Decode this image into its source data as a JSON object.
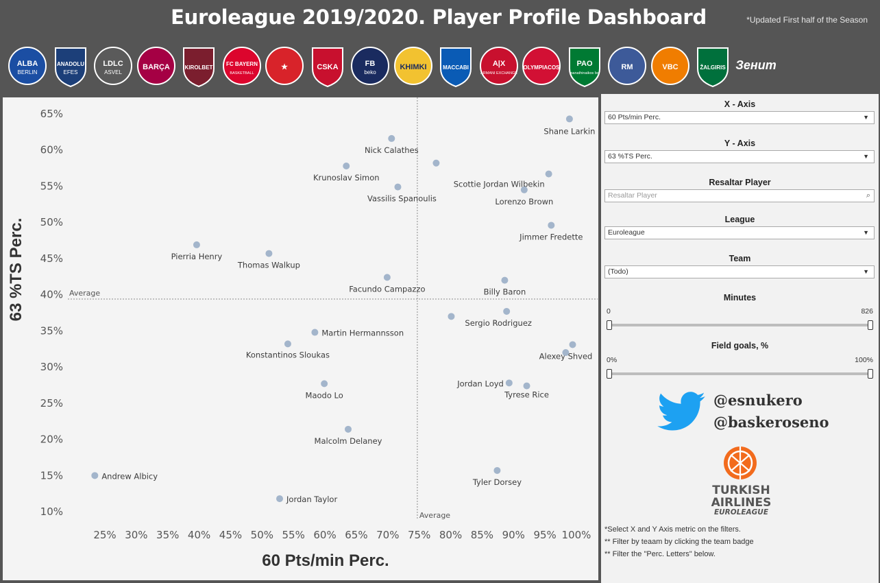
{
  "header": {
    "title": "Euroleague 2019/2020. Player Profile Dashboard",
    "subtitle": "*Updated First half of the Season"
  },
  "teams": [
    {
      "name": "alba-berlin",
      "line1": "ALBA",
      "line2": "BERLIN",
      "color": "#1b4ea3"
    },
    {
      "name": "anadolu-efes",
      "line1": "ANADOLU",
      "line2": "EFES",
      "color": "#1c3f79"
    },
    {
      "name": "ldlc-asvel",
      "line1": "LDLC",
      "line2": "ASVEL",
      "color": "#5a5a5a"
    },
    {
      "name": "barca",
      "line1": "BARÇA",
      "line2": "",
      "color": "#a50044"
    },
    {
      "name": "kirolbet-baskonia",
      "line1": "KIROLBET",
      "line2": "",
      "color": "#7b1e2e"
    },
    {
      "name": "bayern-munchen",
      "line1": "FC BAYERN",
      "line2": "BASKETBALL",
      "color": "#dc052d"
    },
    {
      "name": "crvena-zvezda",
      "line1": "★",
      "line2": "",
      "color": "#d8232a"
    },
    {
      "name": "cska-moscow",
      "line1": "CSKA",
      "line2": "",
      "color": "#c8102e"
    },
    {
      "name": "fenerbahce-beko",
      "line1": "FB",
      "line2": "beko",
      "color": "#1a2b5f"
    },
    {
      "name": "khimki",
      "line1": "KHIMKI",
      "line2": "",
      "color": "#f2c230"
    },
    {
      "name": "maccabi-tel-aviv",
      "line1": "MACCABI",
      "line2": "",
      "color": "#0a5bb5"
    },
    {
      "name": "olimpia-milano",
      "line1": "A|X",
      "line2": "ARMANI EXCHANGE",
      "color": "#c8102e"
    },
    {
      "name": "olympiacos",
      "line1": "OLYMPIACOS",
      "line2": "",
      "color": "#d21034"
    },
    {
      "name": "panathinaikos",
      "line1": "PAO",
      "line2": "panathinaikos bc",
      "color": "#007a33"
    },
    {
      "name": "real-madrid",
      "line1": "RM",
      "line2": "",
      "color": "#3d5a99"
    },
    {
      "name": "valencia-basket",
      "line1": "VBC",
      "line2": "",
      "color": "#f07d00"
    },
    {
      "name": "zalgiris",
      "line1": "ŽALGIRIS",
      "line2": "",
      "color": "#00703c"
    },
    {
      "name": "zenit",
      "line1": "Зенит",
      "line2": "",
      "color": "#ffffff"
    }
  ],
  "chart_data": {
    "type": "scatter",
    "xlabel": "60 Pts/min Perc.",
    "ylabel": "63 %TS Perc.",
    "x_ticks": [
      "25%",
      "30%",
      "35%",
      "40%",
      "45%",
      "50%",
      "55%",
      "60%",
      "65%",
      "70%",
      "75%",
      "80%",
      "85%",
      "90%",
      "95%",
      "100%"
    ],
    "y_ticks": [
      "10%",
      "15%",
      "20%",
      "25%",
      "30%",
      "35%",
      "40%",
      "45%",
      "50%",
      "55%",
      "60%",
      "65%"
    ],
    "xlim": [
      20,
      102
    ],
    "ylim": [
      8,
      66
    ],
    "x_average": 74.7,
    "y_average": 39.3,
    "average_label": "Average",
    "grid": false,
    "point_color": "#a3b5cb",
    "points": [
      {
        "name": "Shane Larkin",
        "x": 98.9,
        "y": 64.2
      },
      {
        "name": "Nick Calathes",
        "x": 70.6,
        "y": 61.5
      },
      {
        "name": "",
        "x": 77.7,
        "y": 58.1
      },
      {
        "name": "Krunoslav Simon",
        "x": 63.4,
        "y": 57.7
      },
      {
        "name": "Scottie Jordan Wilbekin",
        "x": 95.6,
        "y": 56.6
      },
      {
        "name": "Vassilis Spanoulis",
        "x": 71.6,
        "y": 54.8
      },
      {
        "name": "Lorenzo Brown",
        "x": 91.7,
        "y": 54.4
      },
      {
        "name": "Jimmer Fredette",
        "x": 96.0,
        "y": 49.5
      },
      {
        "name": "Pierria Henry",
        "x": 39.6,
        "y": 46.8
      },
      {
        "name": "Thomas Walkup",
        "x": 51.1,
        "y": 45.6
      },
      {
        "name": "Facundo Campazzo",
        "x": 69.9,
        "y": 42.3
      },
      {
        "name": "Billy Baron",
        "x": 88.6,
        "y": 41.9
      },
      {
        "name": "Sergio Rodriguez",
        "x": 88.9,
        "y": 37.6
      },
      {
        "name": "",
        "x": 80.1,
        "y": 36.9
      },
      {
        "name": "Martin Hermannsson",
        "x": 58.4,
        "y": 34.7
      },
      {
        "name": "Konstantinos Sloukas",
        "x": 54.1,
        "y": 33.1
      },
      {
        "name": "Alexey Shved",
        "x": 99.4,
        "y": 33.0
      },
      {
        "name": "",
        "x": 98.3,
        "y": 31.9
      },
      {
        "name": "Jordan Loyd",
        "x": 89.3,
        "y": 27.7
      },
      {
        "name": "Maodo Lo",
        "x": 59.9,
        "y": 27.6
      },
      {
        "name": "Tyrese Rice",
        "x": 92.1,
        "y": 27.3
      },
      {
        "name": "Malcolm Delaney",
        "x": 63.7,
        "y": 21.3
      },
      {
        "name": "Tyler Dorsey",
        "x": 87.4,
        "y": 15.6
      },
      {
        "name": "Andrew Albicy",
        "x": 23.4,
        "y": 14.9
      },
      {
        "name": "Jordan Taylor",
        "x": 52.8,
        "y": 11.7
      }
    ]
  },
  "filters": {
    "x_axis": {
      "title": "X - Axis",
      "value": "60 Pts/min Perc."
    },
    "y_axis": {
      "title": "Y - Axis",
      "value": "63 %TS Perc."
    },
    "highlight": {
      "title": "Resaltar Player",
      "placeholder": "Resaltar Player"
    },
    "league": {
      "title": "League",
      "value": "Euroleague"
    },
    "team": {
      "title": "Team",
      "value": "(Todo)"
    },
    "minutes": {
      "title": "Minutes",
      "min_label": "0",
      "max_label": "826"
    },
    "fg": {
      "title": "Field goals, %",
      "min_label": "0%",
      "max_label": "100%"
    }
  },
  "social": {
    "handle1": "@esnukero",
    "handle2": "@baskeroseno"
  },
  "euroleague_logo": {
    "line1": "TURKISH",
    "line2": "AIRLINES",
    "line3": "EUROLEAGUE"
  },
  "notes": [
    "*Select X and Y Axis metric on the filters.",
    "** Filter by teaam by clicking the team badge",
    "** Filter the \"Perc. Letters\" below."
  ]
}
